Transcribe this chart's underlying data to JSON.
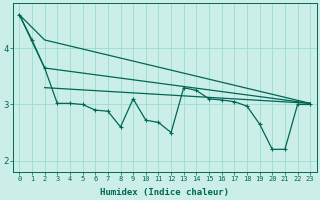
{
  "xlabel": "Humidex (Indice chaleur)",
  "bg_color": "#cceee8",
  "grid_color": "#99ddcc",
  "line_color": "#006655",
  "xlim": [
    -0.5,
    23.5
  ],
  "ylim": [
    1.8,
    4.8
  ],
  "yticks": [
    2,
    3,
    4
  ],
  "xticks": [
    0,
    1,
    2,
    3,
    4,
    5,
    6,
    7,
    8,
    9,
    10,
    11,
    12,
    13,
    14,
    15,
    16,
    17,
    18,
    19,
    20,
    21,
    22,
    23
  ],
  "series": {
    "zigzag_x": [
      0,
      1,
      2,
      3,
      4,
      5,
      6,
      7,
      8,
      9,
      10,
      11,
      12,
      13,
      14,
      15,
      16,
      17,
      18,
      19,
      20,
      21,
      22,
      23
    ],
    "zigzag_y": [
      4.6,
      4.15,
      3.65,
      3.02,
      3.02,
      3.0,
      2.9,
      2.88,
      2.6,
      3.1,
      2.72,
      2.68,
      2.5,
      3.3,
      3.25,
      3.1,
      3.08,
      3.05,
      2.97,
      2.65,
      2.2,
      2.2,
      3.0,
      3.0
    ],
    "upper_line_x": [
      0,
      2,
      23
    ],
    "upper_line_y": [
      4.6,
      4.15,
      3.02
    ],
    "lower_line_x": [
      0,
      2,
      23
    ],
    "lower_line_y": [
      4.6,
      3.65,
      3.02
    ],
    "flat_line_x": [
      2,
      23
    ],
    "flat_line_y": [
      3.3,
      3.02
    ]
  }
}
